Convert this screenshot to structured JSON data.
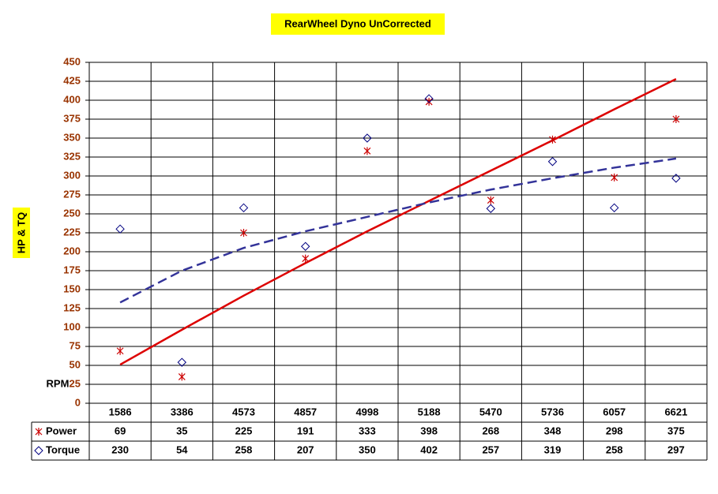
{
  "chart_data": {
    "type": "scatter",
    "title": "RearWheel Dyno UnCorrected",
    "y_label": "HP & TQ",
    "x_label": "RPM",
    "categories": [
      "1586",
      "3386",
      "4573",
      "4857",
      "4998",
      "5188",
      "5470",
      "5736",
      "6057",
      "6621"
    ],
    "series": [
      {
        "name": "Power",
        "color": "#cc0000",
        "marker": "asterisk",
        "values": [
          69,
          35,
          225,
          191,
          333,
          398,
          268,
          348,
          298,
          375
        ],
        "trend": {
          "color": "#dd0000",
          "dash": false,
          "values": [
            51,
            97,
            142,
            185,
            227,
            267,
            307,
            347,
            388,
            428
          ]
        }
      },
      {
        "name": "Torque",
        "color": "#000080",
        "marker": "diamond",
        "values": [
          230,
          54,
          258,
          207,
          350,
          402,
          257,
          319,
          258,
          297
        ],
        "trend": {
          "color": "#333399",
          "dash": true,
          "values": [
            133,
            175,
            205,
            227,
            246,
            265,
            282,
            297,
            311,
            323
          ]
        }
      }
    ],
    "ylim": [
      0,
      450
    ],
    "yticks": [
      0,
      25,
      50,
      75,
      100,
      125,
      150,
      175,
      200,
      225,
      250,
      275,
      300,
      325,
      350,
      375,
      400,
      425,
      450
    ],
    "grid": true
  }
}
